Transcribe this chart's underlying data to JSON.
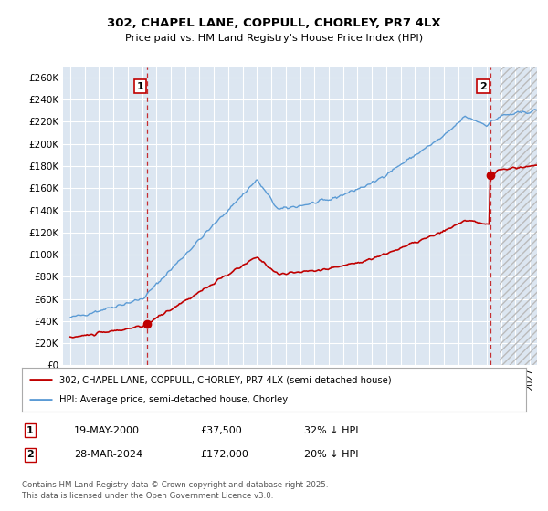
{
  "title": "302, CHAPEL LANE, COPPULL, CHORLEY, PR7 4LX",
  "subtitle": "Price paid vs. HM Land Registry's House Price Index (HPI)",
  "ylim": [
    0,
    270000
  ],
  "yticks": [
    0,
    20000,
    40000,
    60000,
    80000,
    100000,
    120000,
    140000,
    160000,
    180000,
    200000,
    220000,
    240000,
    260000
  ],
  "bg_color": "#dce6f1",
  "grid_color": "#ffffff",
  "hpi_color": "#5b9bd5",
  "price_color": "#c00000",
  "sale1_year": 2000.38,
  "sale1_price": 37500,
  "sale2_year": 2024.24,
  "sale2_price": 172000,
  "legend_line1": "302, CHAPEL LANE, COPPULL, CHORLEY, PR7 4LX (semi-detached house)",
  "legend_line2": "HPI: Average price, semi-detached house, Chorley",
  "annotation1_date": "19-MAY-2000",
  "annotation1_price": "£37,500",
  "annotation1_hpi": "32% ↓ HPI",
  "annotation2_date": "28-MAR-2024",
  "annotation2_price": "£172,000",
  "annotation2_hpi": "20% ↓ HPI",
  "footnote": "Contains HM Land Registry data © Crown copyright and database right 2025.\nThis data is licensed under the Open Government Licence v3.0.",
  "xmin": 1994.5,
  "xmax": 2027.5,
  "hatch_start": 2024.9
}
